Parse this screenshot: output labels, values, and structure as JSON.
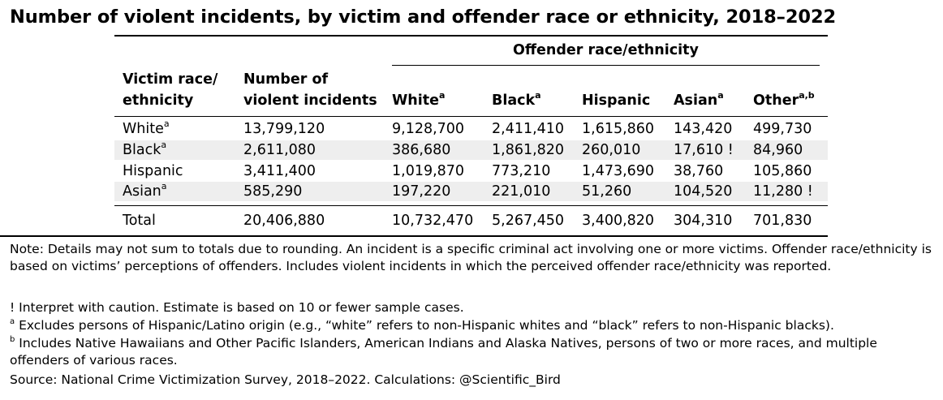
{
  "title": "Number of violent incidents, by victim and offender race or ethnicity, 2018–2022",
  "header": {
    "group": "Offender race/ethnicity",
    "victim_line1": "Victim race/",
    "victim_line2": "ethnicity",
    "incidents_line1": "Number of",
    "incidents_line2": "violent incidents",
    "white": "White",
    "white_sup": "a",
    "black": "Black",
    "black_sup": "a",
    "hispanic": "Hispanic",
    "asian": "Asian",
    "asian_sup": "a",
    "other": "Other",
    "other_sup": "a,b"
  },
  "rows": [
    {
      "victim": "White",
      "sup": "a",
      "incidents": "13,799,120",
      "white": "9,128,700",
      "black": "2,411,410",
      "hispanic": "1,615,860",
      "asian": "143,420",
      "other": "499,730"
    },
    {
      "victim": "Black",
      "sup": "a",
      "incidents": "2,611,080",
      "white": "386,680",
      "black": "1,861,820",
      "hispanic": "260,010",
      "asian": "17,610 !",
      "other": "84,960"
    },
    {
      "victim": "Hispanic",
      "sup": "",
      "incidents": "3,411,400",
      "white": "1,019,870",
      "black": "773,210",
      "hispanic": "1,473,690",
      "asian": "38,760",
      "other": "105,860"
    },
    {
      "victim": "Asian",
      "sup": "a",
      "incidents": "585,290",
      "white": "197,220",
      "black": "221,010",
      "hispanic": "51,260",
      "asian": "104,520",
      "other": "11,280 !"
    }
  ],
  "total": {
    "victim": "Total",
    "incidents": "20,406,880",
    "white": "10,732,470",
    "black": "5,267,450",
    "hispanic": "3,400,820",
    "asian": "304,310",
    "other": "701,830"
  },
  "notes": {
    "note": "Note: Details may not sum to totals due to rounding. An incident is a specific criminal act involving one or more victims. Offender race/ethnicity is based on victims’ perceptions of offenders. Includes violent incidents in which the perceived offender race/ethnicity was reported.",
    "caution": "! Interpret with caution. Estimate is based on 10 or fewer sample cases.",
    "a_mark": "a",
    "a_text": " Excludes persons of Hispanic/Latino origin (e.g., “white” refers to non-Hispanic whites and “black” refers to non-Hispanic blacks).",
    "b_mark": "b",
    "b_text": " Includes Native Hawaiians and Other Pacific Islanders, American Indians and Alaska Natives, persons of two or more races, and multiple offenders of various races.",
    "source": "Source: National Crime Victimization Survey, 2018–2022. Calculations: @Scientific_Bird"
  }
}
